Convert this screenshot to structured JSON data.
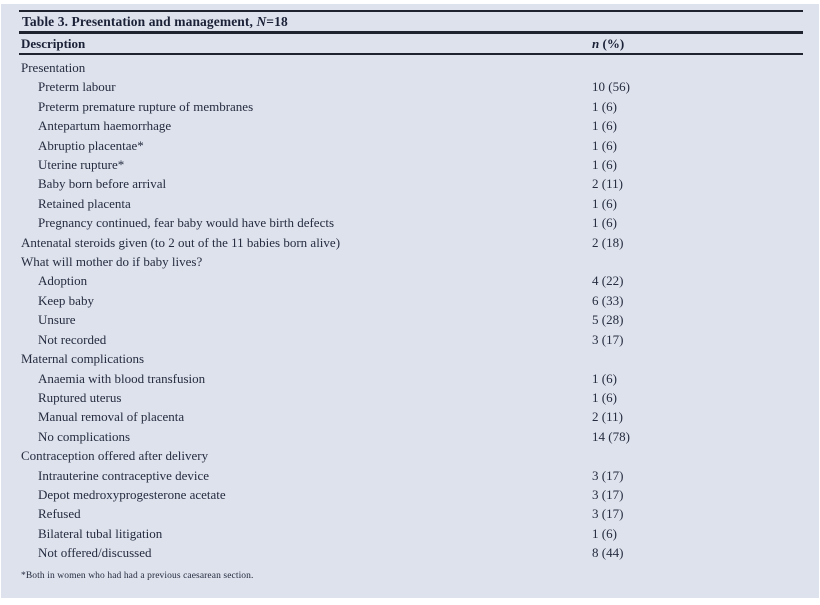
{
  "table": {
    "title_prefix": "Table 3. Presentation and management, ",
    "title_n_italic": "N",
    "title_suffix": "=18",
    "columns": {
      "description": "Description",
      "n_italic": "n",
      "n_rest": " (%)"
    },
    "rows": [
      {
        "label": "Presentation",
        "indent": 0,
        "value": ""
      },
      {
        "label": "Preterm labour",
        "indent": 1,
        "value": "10 (56)"
      },
      {
        "label": "Preterm premature rupture of membranes",
        "indent": 1,
        "value": "1 (6)"
      },
      {
        "label": "Antepartum haemorrhage",
        "indent": 1,
        "value": "1 (6)"
      },
      {
        "label": "Abruptio placentae*",
        "indent": 1,
        "value": "1 (6)"
      },
      {
        "label": "Uterine rupture*",
        "indent": 1,
        "value": "1 (6)"
      },
      {
        "label": "Baby born before arrival",
        "indent": 1,
        "value": "2 (11)"
      },
      {
        "label": "Retained placenta",
        "indent": 1,
        "value": "1 (6)"
      },
      {
        "label": "Pregnancy continued, fear baby would have birth defects",
        "indent": 1,
        "value": "1 (6)"
      },
      {
        "label": "Antenatal steroids given (to 2 out of the 11 babies born alive)",
        "indent": 0,
        "value": "2 (18)"
      },
      {
        "label": "What will mother do if baby lives?",
        "indent": 0,
        "value": ""
      },
      {
        "label": "Adoption",
        "indent": 1,
        "value": "4 (22)"
      },
      {
        "label": "Keep baby",
        "indent": 1,
        "value": "6 (33)"
      },
      {
        "label": "Unsure",
        "indent": 1,
        "value": "5 (28)"
      },
      {
        "label": "Not recorded",
        "indent": 1,
        "value": "3 (17)"
      },
      {
        "label": "Maternal complications",
        "indent": 0,
        "value": ""
      },
      {
        "label": "Anaemia with blood transfusion",
        "indent": 1,
        "value": "1 (6)"
      },
      {
        "label": "Ruptured uterus",
        "indent": 1,
        "value": "1 (6)"
      },
      {
        "label": "Manual removal of placenta",
        "indent": 1,
        "value": "2 (11)"
      },
      {
        "label": "No complications",
        "indent": 1,
        "value": "14 (78)"
      },
      {
        "label": "Contraception offered after delivery",
        "indent": 0,
        "value": ""
      },
      {
        "label": "Intrauterine contraceptive device",
        "indent": 1,
        "value": "3 (17)"
      },
      {
        "label": "Depot medroxyprogesterone acetate",
        "indent": 1,
        "value": "3 (17)"
      },
      {
        "label": "Refused",
        "indent": 1,
        "value": "3 (17)"
      },
      {
        "label": "Bilateral tubal litigation",
        "indent": 1,
        "value": "1 (6)"
      },
      {
        "label": "Not offered/discussed",
        "indent": 1,
        "value": "8 (44)"
      }
    ],
    "footnote": "*Both in women who had had a previous caesarean section."
  },
  "colors": {
    "panel_bg": "#dee2ed",
    "text": "#252c3f",
    "rule": "#1f2330"
  }
}
